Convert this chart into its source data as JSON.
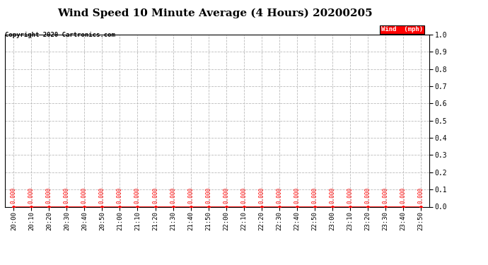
{
  "title": "Wind Speed 10 Minute Average (4 Hours) 20200205",
  "copyright_text": "Copyright 2020 Cartronics.com",
  "legend_label": "Wind  (mph)",
  "legend_color": "#ff0000",
  "legend_bg": "#ff0000",
  "line_color": "#ff0000",
  "marker_color": "#ff0000",
  "annotation_color": "#ff0000",
  "x_labels": [
    "20:00",
    "20:10",
    "20:20",
    "20:30",
    "20:40",
    "20:50",
    "21:00",
    "21:10",
    "21:20",
    "21:30",
    "21:40",
    "21:50",
    "22:00",
    "22:10",
    "22:20",
    "22:30",
    "22:40",
    "22:50",
    "23:00",
    "23:10",
    "23:20",
    "23:30",
    "23:40",
    "23:50"
  ],
  "y_values": [
    0.0,
    0.0,
    0.0,
    0.0,
    0.0,
    0.0,
    0.0,
    0.0,
    0.0,
    0.0,
    0.0,
    0.0,
    0.0,
    0.0,
    0.0,
    0.0,
    0.0,
    0.0,
    0.0,
    0.0,
    0.0,
    0.0,
    0.0,
    0.0
  ],
  "ylim": [
    0.0,
    1.0
  ],
  "yticks": [
    0.0,
    0.1,
    0.2,
    0.3,
    0.4,
    0.5,
    0.6,
    0.7,
    0.8,
    0.9,
    1.0
  ],
  "ytick_labels": [
    "0.0",
    "0.1",
    "0.2",
    "0.3",
    "0.4",
    "0.5",
    "0.6",
    "0.7",
    "0.8",
    "0.9",
    "1.0"
  ],
  "background_color": "#ffffff",
  "grid_color": "#bbbbbb",
  "title_fontsize": 11,
  "axis_fontsize": 6.5,
  "annotation_fontsize": 5.5,
  "copyright_fontsize": 6.5,
  "legend_fontsize": 6.5
}
